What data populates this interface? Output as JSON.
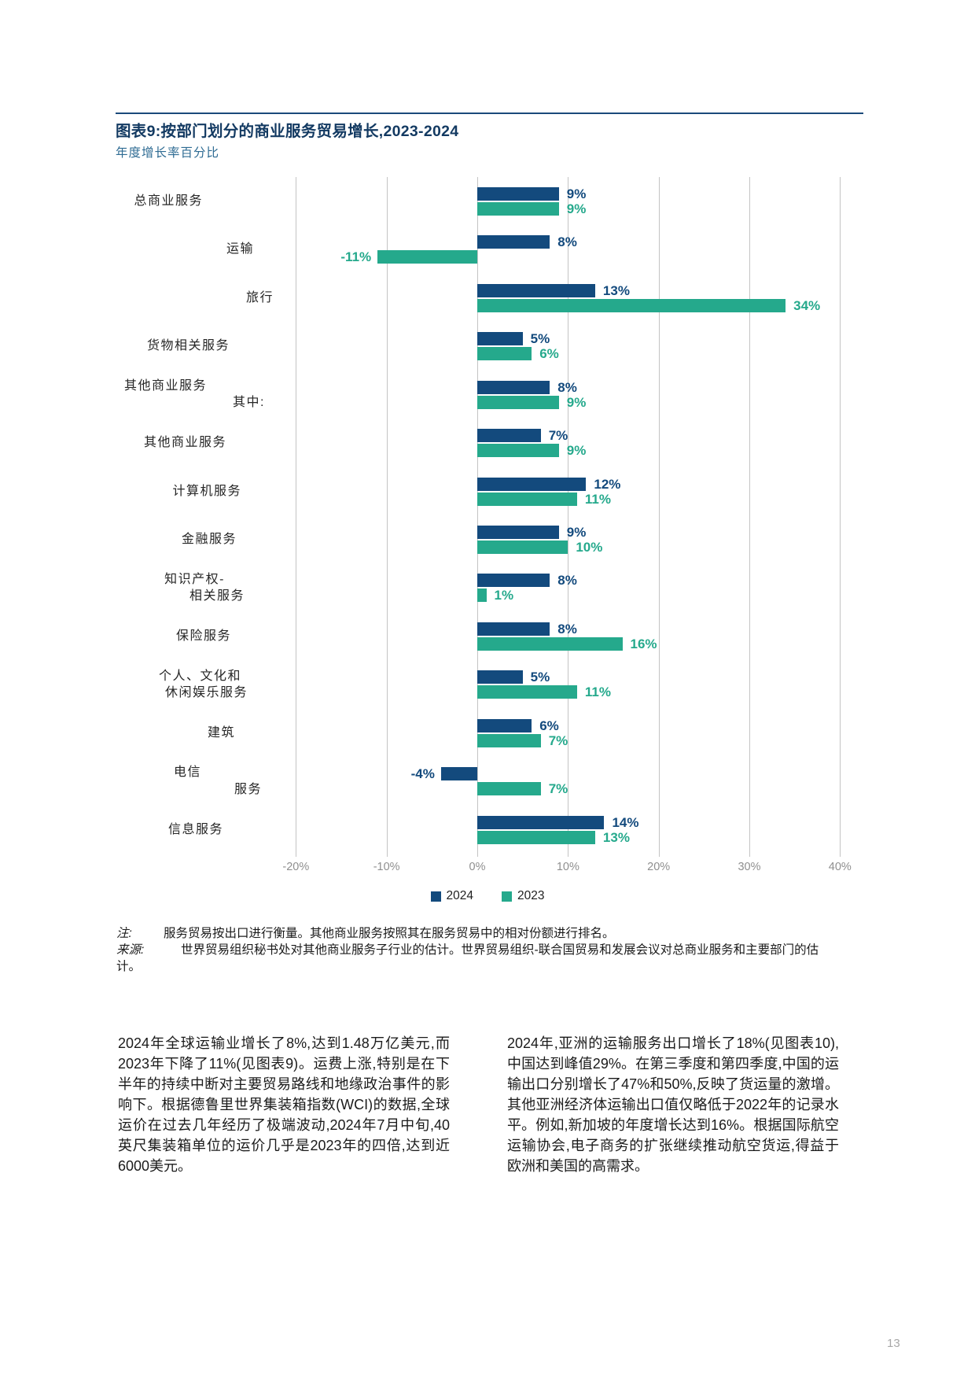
{
  "chart_data": {
    "type": "bar",
    "orientation": "horizontal",
    "title": "图表9:按部门划分的商业服务贸易增长,2023-2024",
    "subtitle": "年度增长率百分比",
    "categories": [
      [
        "总商业服务"
      ],
      [
        "运输"
      ],
      [
        "旅行"
      ],
      [
        "货物相关服务"
      ],
      [
        "其他商业服务",
        "其中:"
      ],
      [
        "其他商业服务"
      ],
      [
        "计算机服务"
      ],
      [
        "金融服务"
      ],
      [
        "知识产权-",
        "相关服务"
      ],
      [
        "保险服务"
      ],
      [
        "个人、文化和",
        "休闲娱乐服务"
      ],
      [
        "建筑"
      ],
      [
        "电信",
        "服务"
      ],
      [
        "信息服务"
      ]
    ],
    "series": [
      {
        "name": "2024",
        "color": "#134A7D",
        "values": [
          9,
          8,
          13,
          5,
          8,
          7,
          12,
          9,
          8,
          8,
          5,
          6,
          -4,
          14
        ]
      },
      {
        "name": "2023",
        "color": "#25A98C",
        "values": [
          9,
          -11,
          34,
          6,
          9,
          9,
          11,
          10,
          1,
          16,
          11,
          7,
          7,
          13
        ]
      }
    ],
    "x_ticks": [
      -20,
      -10,
      0,
      10,
      20,
      30,
      40
    ],
    "x_tick_labels": [
      "-20%",
      "-10%",
      "0%",
      "10%",
      "20%",
      "30%",
      "40%"
    ],
    "xlim": [
      -20,
      40
    ],
    "value_suffix": "%",
    "grid": "vertical-only",
    "legend_position": "bottom-center"
  },
  "notes": {
    "note_label": "注:",
    "note_text": "服务贸易按出口进行衡量。其他商业服务按照其在服务贸易中的相对份额进行排名。",
    "source_label": "来源:",
    "source_text": "世界贸易组织秘书处对其他商业服务子行业的估计。世界贸易组织-联合国贸易和发展会议对总商业服务和主要部门的估计。"
  },
  "body": {
    "left_column": "2024年全球运输业增长了8%,达到1.48万亿美元,而2023年下降了11%(见图表9)。运费上涨,特别是在下半年的持续中断对主要贸易路线和地缘政治事件的影响下。根据德鲁里世界集装箱指数(WCI)的数据,全球运价在过去几年经历了极端波动,2024年7月中旬,40英尺集装箱单位的运价几乎是2023年的四倍,达到近6000美元。",
    "right_column": "2024年,亚洲的运输服务出口增长了18%(见图表10),中国达到峰值29%。在第三季度和第四季度,中国的运输出口分别增长了47%和50%,反映了货运量的激增。其他亚洲经济体运输出口值仅略低于2022年的记录水平。例如,新加坡的年度增长达到16%。根据国际航空运输协会,电子商务的扩张继续推动航空货运,得益于欧洲和美国的高需求。"
  },
  "page": {
    "number": "13"
  },
  "colors": {
    "bar_2024": "#134A7D",
    "bar_2023": "#25A98C",
    "title": "#133A62",
    "subtitle": "#2E6B93",
    "rule": "#1B4A7A",
    "gridline": "#C4C4C4",
    "tick_label": "#8F8F8F",
    "category_label": "#262626",
    "body_text": "#1A1A1A",
    "page_number": "#A8A8A8"
  }
}
